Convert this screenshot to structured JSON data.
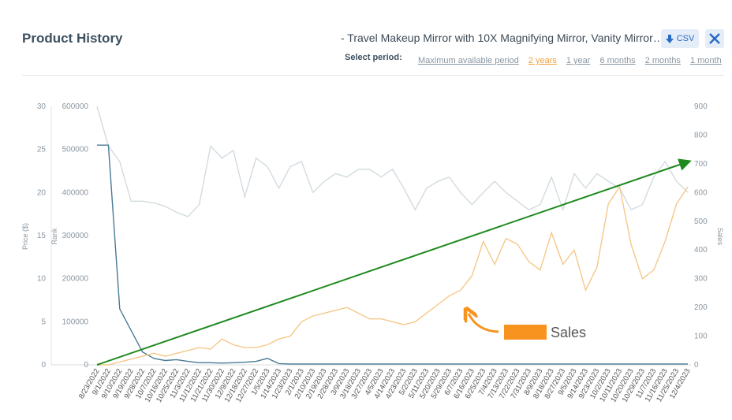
{
  "header": {
    "title": "Product History",
    "product": "- Travel Makeup Mirror with 10X Magnifying Mirror, Vanity Mirror…",
    "csv": "CSV",
    "period_label": "Select period:",
    "periods": [
      "Maximum available period",
      "2 years",
      "1 year",
      "6 months",
      "2 months",
      "1 month"
    ],
    "active_period": 1
  },
  "chart_data": {
    "type": "line",
    "categories": [
      "8/23/2022",
      "9/1/2022",
      "9/10/2022",
      "9/19/2022",
      "9/28/2022",
      "10/7/2022",
      "10/16/2022",
      "10/25/2022",
      "11/3/2022",
      "11/12/2022",
      "11/21/2022",
      "11/30/2022",
      "12/9/2022",
      "12/18/2022",
      "12/27/2022",
      "1/5/2023",
      "1/14/2023",
      "1/23/2023",
      "2/1/2023",
      "2/10/2023",
      "2/19/2023",
      "2/28/2023",
      "3/9/2023",
      "3/18/2023",
      "3/27/2023",
      "4/5/2023",
      "4/14/2023",
      "4/23/2023",
      "5/2/2023",
      "5/11/2023",
      "5/20/2023",
      "5/29/2023",
      "6/7/2023",
      "6/16/2023",
      "6/25/2023",
      "7/4/2023",
      "7/13/2023",
      "7/22/2023",
      "7/31/2023",
      "8/9/2023",
      "8/18/2023",
      "8/27/2023",
      "9/5/2023",
      "9/14/2023",
      "9/23/2023",
      "10/2/2023",
      "10/11/2023",
      "10/20/2023",
      "10/29/2023",
      "11/7/2023",
      "11/16/2023",
      "11/25/2023",
      "12/4/2023"
    ],
    "axes": [
      {
        "label": "Price ($)",
        "lim": [
          0,
          30
        ],
        "ticks": [
          0,
          5,
          10,
          15,
          20,
          25,
          30
        ]
      },
      {
        "label": "Rank",
        "lim": [
          0,
          600000
        ],
        "ticks": [
          0,
          100000,
          200000,
          300000,
          400000,
          500000,
          600000
        ]
      },
      {
        "label": "Sales",
        "lim": [
          0,
          900
        ],
        "ticks": [
          0,
          100,
          200,
          300,
          400,
          500,
          600,
          700,
          800,
          900
        ]
      }
    ],
    "series": [
      {
        "name": "Price",
        "axis": 0,
        "color": "#d3dbdf",
        "values": [
          30,
          25.4,
          23.6,
          19,
          19,
          18.8,
          18.4,
          17.7,
          17.2,
          18.6,
          25.4,
          24,
          24.9,
          19.5,
          24,
          23,
          20.5,
          23,
          23.6,
          20,
          21.3,
          22.2,
          21.8,
          22.7,
          22.7,
          21.8,
          22.7,
          20.5,
          18,
          20.5,
          21.3,
          21.8,
          20,
          18.6,
          20,
          21.3,
          20,
          19,
          18,
          18.6,
          21.8,
          18,
          22.2,
          20.5,
          22.2,
          21.3,
          20.5,
          18,
          18.6,
          21.8,
          23.6,
          21.3,
          20
        ]
      },
      {
        "name": "Rank",
        "axis": 1,
        "color": "#4a7a96",
        "values": [
          510000,
          510000,
          130000,
          80000,
          30000,
          15000,
          10000,
          12000,
          8000,
          5000,
          5000,
          4000,
          5000,
          6000,
          8000,
          15000,
          3000,
          2000,
          2000,
          2000,
          2000,
          2000,
          2000,
          2000,
          2000,
          2000,
          2000,
          2000,
          2000,
          2000,
          2000,
          2000,
          2000,
          2000,
          2000,
          2000,
          2000,
          2000,
          2000,
          2000,
          2000,
          2000,
          2000,
          2000,
          2000,
          2000,
          2000,
          2000,
          2000,
          2000,
          2000,
          2000,
          2000
        ]
      },
      {
        "name": "Sales",
        "axis": 2,
        "color": "#f5c88a",
        "values": [
          0,
          0,
          10,
          20,
          30,
          40,
          30,
          40,
          50,
          60,
          55,
          90,
          70,
          60,
          60,
          70,
          90,
          100,
          150,
          170,
          180,
          190,
          200,
          180,
          160,
          160,
          150,
          140,
          150,
          180,
          210,
          240,
          260,
          310,
          430,
          350,
          440,
          420,
          360,
          330,
          460,
          350,
          400,
          260,
          340,
          560,
          620,
          420,
          300,
          330,
          430,
          560,
          620
        ]
      }
    ],
    "annotation": "Sales",
    "grid": false
  }
}
